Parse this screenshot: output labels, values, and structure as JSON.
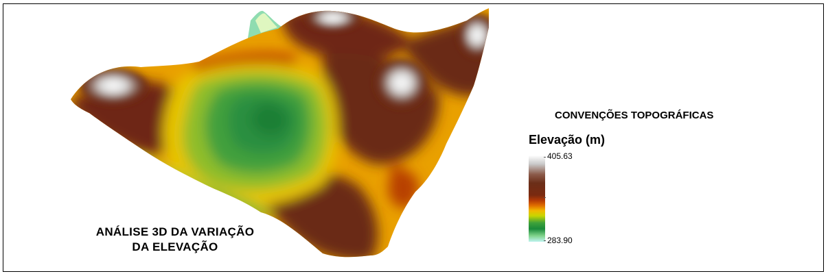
{
  "map": {
    "title_line1": "ANÁLISE 3D DA VARIAÇÃO",
    "title_line2": "DA ELEVAÇÃO"
  },
  "legend": {
    "heading": "CONVENÇÕES TOPOGRÁFICAS",
    "title": "Elevação (m)",
    "max_label": "405.63",
    "min_label": "283.90",
    "ramp_colors": [
      "#ffffff",
      "#c9c9c9",
      "#8b5a4a",
      "#6b2e18",
      "#7a2a10",
      "#b33a06",
      "#e06e00",
      "#f2b900",
      "#c8d600",
      "#3fa23a",
      "#1a8a3a",
      "#7fd38a",
      "#bff3f0"
    ]
  },
  "colors": {
    "frame": "#000000",
    "valley": "#2f9a3c",
    "peak": "#eeeeee"
  }
}
